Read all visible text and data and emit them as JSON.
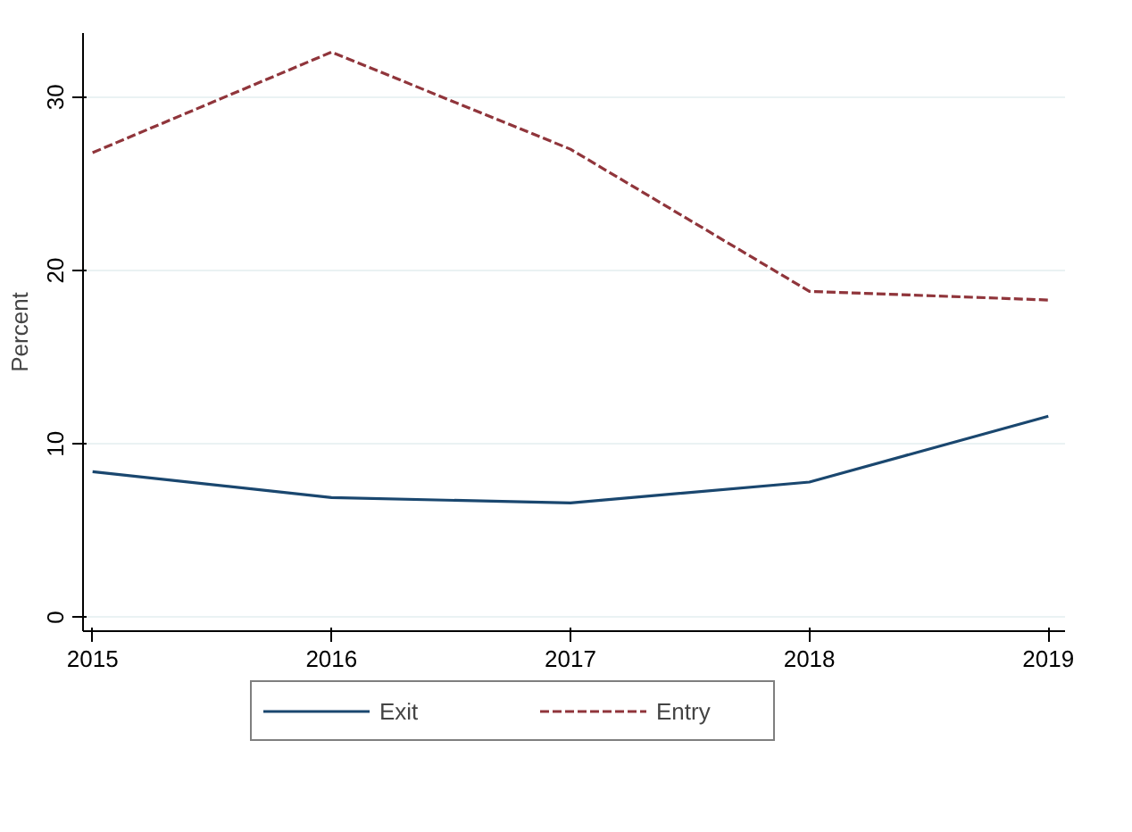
{
  "chart_data": {
    "type": "line",
    "ylabel": "Percent",
    "x": [
      2015,
      2016,
      2017,
      2018,
      2019
    ],
    "series": [
      {
        "name": "Exit",
        "color": "#1a476f",
        "values": [
          8.4,
          6.9,
          6.6,
          7.8,
          11.6
        ],
        "line_style": "solid"
      },
      {
        "name": "Entry",
        "color": "#90353b",
        "values": [
          26.8,
          32.6,
          27.0,
          18.8,
          18.3
        ],
        "line_style": "dashed"
      }
    ],
    "xlim": [
      2014.96,
      2019.07
    ],
    "ylim": [
      -0.8,
      33.7
    ],
    "xticks": [
      2015,
      2016,
      2017,
      2018,
      2019
    ],
    "yticks": [
      0,
      10,
      20,
      30
    ],
    "grid": "y",
    "legend": "bottom",
    "marker": "none"
  }
}
